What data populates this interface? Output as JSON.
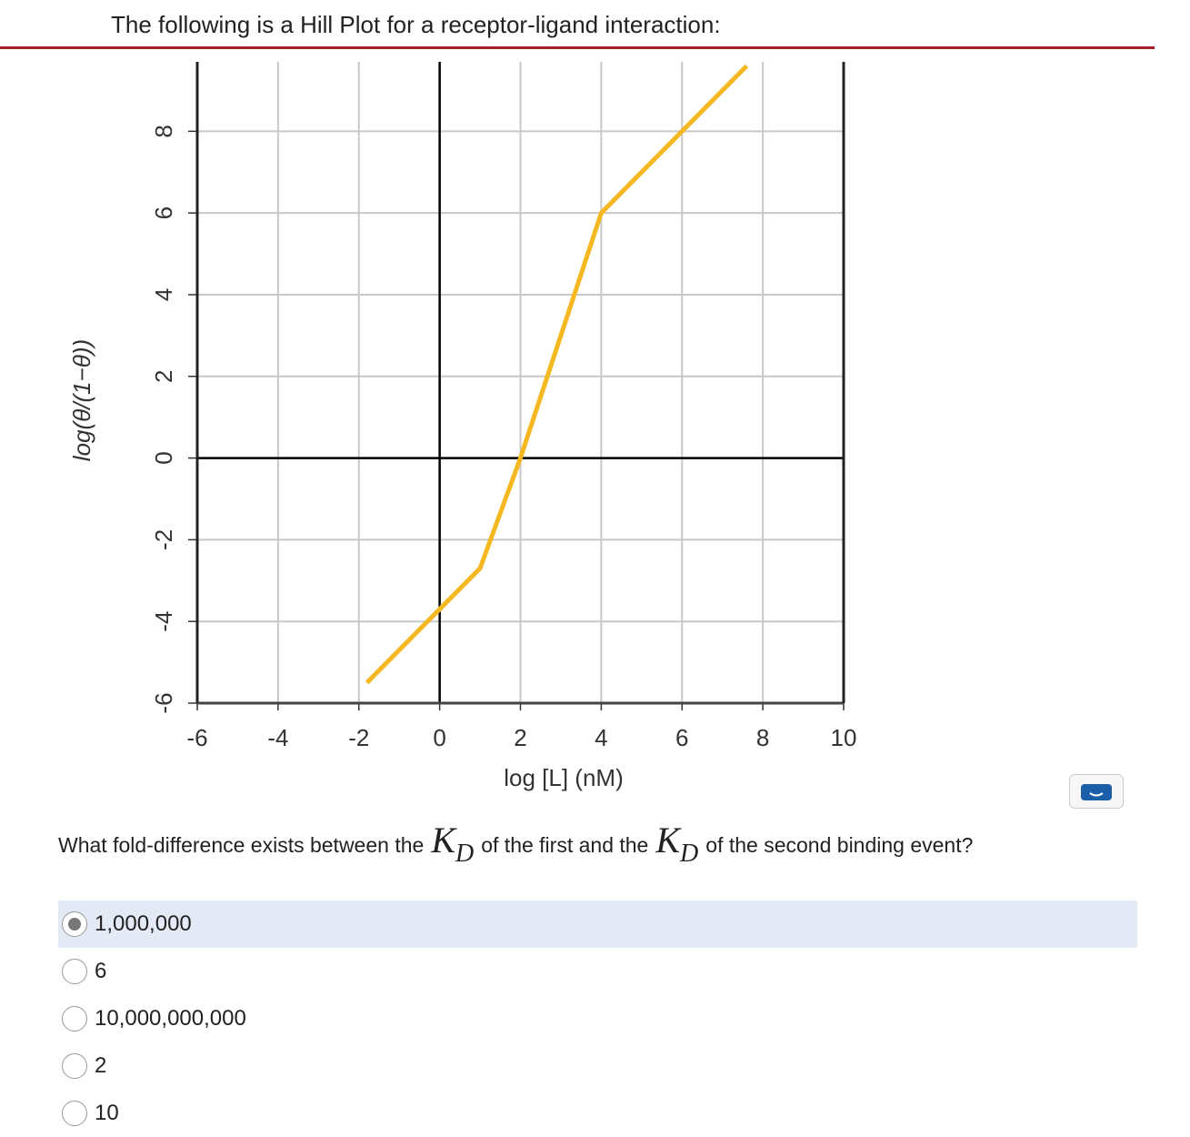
{
  "header": {
    "title": "The following is a Hill Plot for a receptor-ligand interaction:"
  },
  "chart_data": {
    "type": "line",
    "x_label": "log [L] (nM)",
    "y_label": "log(θ/(1−θ))",
    "x": [
      -1.8,
      1,
      2,
      4,
      7.6
    ],
    "series": [
      {
        "color": "#f5b820",
        "values": [
          -5.5,
          -2.7,
          0,
          6,
          9.6
        ]
      }
    ],
    "xlim": [
      -6,
      10
    ],
    "xticks": [
      -6,
      -4,
      -2,
      0,
      2,
      4,
      6,
      8,
      10
    ],
    "ylim": [
      -6,
      9.7
    ],
    "yticks": [
      -6,
      -4,
      -2,
      0,
      2,
      4,
      6,
      8
    ],
    "grid": true,
    "zero_lines": true
  },
  "question": {
    "segments": [
      "What fold-difference exists between the",
      "of the first and the",
      "of the second binding event?"
    ],
    "symbol": "K",
    "subscript": "D"
  },
  "options": [
    {
      "label": "1,000,000",
      "selected": true
    },
    {
      "label": "6",
      "selected": false
    },
    {
      "label": "10,000,000,000",
      "selected": false
    },
    {
      "label": "2",
      "selected": false
    },
    {
      "label": "10",
      "selected": false
    }
  ]
}
